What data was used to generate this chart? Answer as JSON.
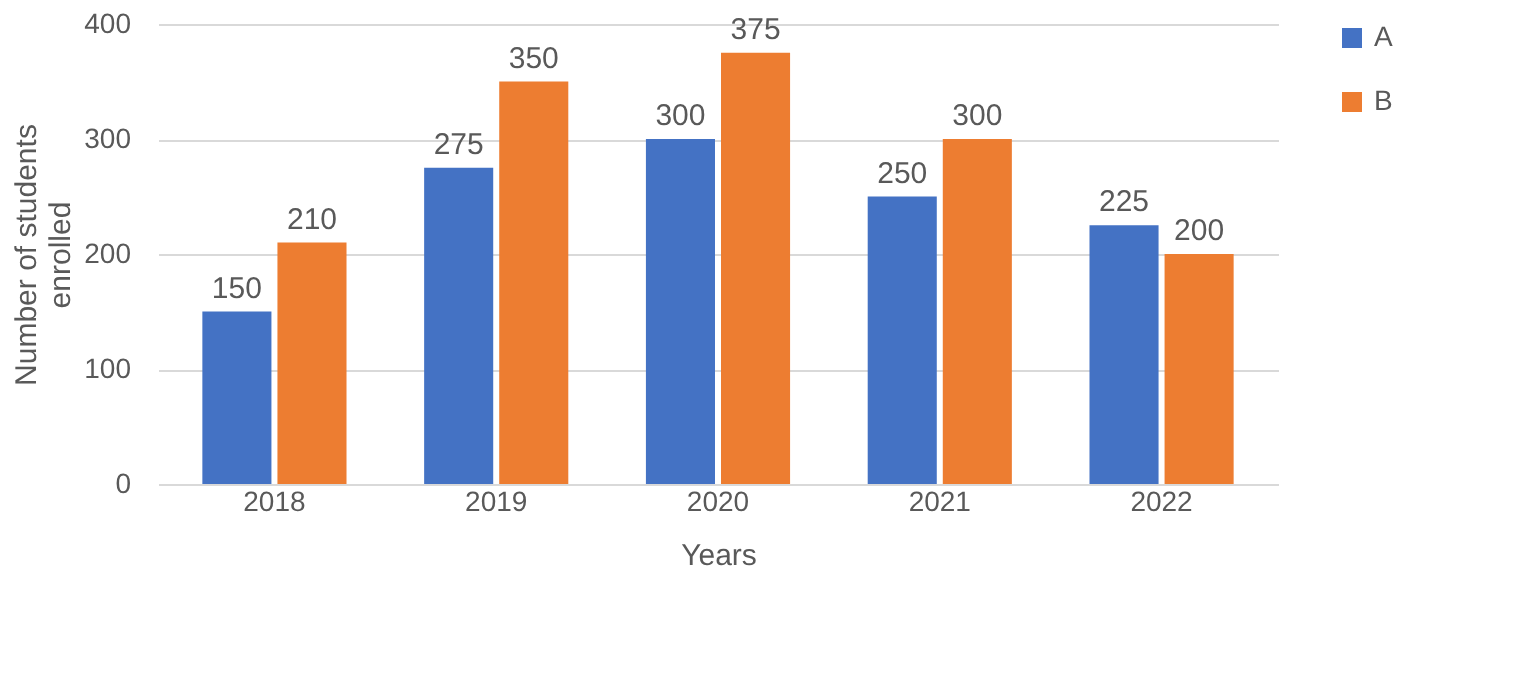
{
  "chart_data": {
    "type": "bar",
    "xlabel": "Years",
    "ylabel": "Number of students enrolled",
    "categories": [
      "2018",
      "2019",
      "2020",
      "2021",
      "2022"
    ],
    "series": [
      {
        "name": "A",
        "color": "#4472c4",
        "values": [
          150,
          275,
          300,
          250,
          225
        ]
      },
      {
        "name": "B",
        "color": "#ed7d31",
        "values": [
          210,
          350,
          375,
          300,
          200
        ]
      }
    ],
    "ylim": [
      0,
      400
    ],
    "yticks": [
      0,
      100,
      200,
      300,
      400
    ],
    "grid": "y",
    "legend": "right",
    "data_labels": true
  }
}
